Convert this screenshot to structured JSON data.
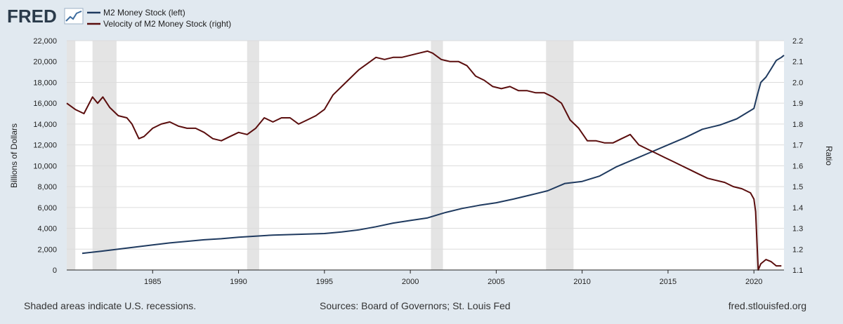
{
  "header": {
    "brand": "FRED"
  },
  "footer": {
    "left": "Shaded areas indicate U.S. recessions.",
    "center": "Sources: Board of Governors; St. Louis Fed",
    "right": "fred.stlouisfed.org"
  },
  "colors": {
    "background": "#e1e9f0",
    "plot_bg": "#ffffff",
    "series_m2": "#1f3a5f",
    "series_velocity": "#5a0d0d",
    "recession": "#e4e4e4",
    "grid": "#dcdcdc"
  },
  "chart_data": {
    "type": "line",
    "xlabel": "",
    "ylabel_left": "Billions of Dollars",
    "ylabel_right": "Ratio",
    "xlim": [
      1980.0,
      2021.75
    ],
    "ylim_left": [
      0,
      22000
    ],
    "ylim_right": [
      1.1,
      2.2
    ],
    "x_ticks": [
      1985,
      1990,
      1995,
      2000,
      2005,
      2010,
      2015,
      2020
    ],
    "y_ticks_left": [
      "0",
      "2,000",
      "4,000",
      "6,000",
      "8,000",
      "10,000",
      "12,000",
      "14,000",
      "16,000",
      "18,000",
      "20,000",
      "22,000"
    ],
    "y_ticks_right": [
      "1.1",
      "1.2",
      "1.3",
      "1.4",
      "1.5",
      "1.6",
      "1.7",
      "1.8",
      "1.9",
      "2.0",
      "2.1",
      "2.2"
    ],
    "grid": true,
    "legend_position": "top-left",
    "recessions": [
      [
        1980.0,
        1980.5
      ],
      [
        1981.5,
        1982.9
      ],
      [
        1990.5,
        1991.2
      ],
      [
        2001.2,
        2001.9
      ],
      [
        2007.9,
        2009.5
      ],
      [
        2020.1,
        2020.3
      ]
    ],
    "series": [
      {
        "name": "M2 Money Stock (left)",
        "axis": "left",
        "points": [
          [
            1980.9,
            1600
          ],
          [
            1982.0,
            1800
          ],
          [
            1983.0,
            2000
          ],
          [
            1984.0,
            2200
          ],
          [
            1985.0,
            2400
          ],
          [
            1986.0,
            2600
          ],
          [
            1987.0,
            2750
          ],
          [
            1988.0,
            2900
          ],
          [
            1989.0,
            3000
          ],
          [
            1990.0,
            3150
          ],
          [
            1991.0,
            3250
          ],
          [
            1992.0,
            3350
          ],
          [
            1993.0,
            3400
          ],
          [
            1994.0,
            3450
          ],
          [
            1995.0,
            3500
          ],
          [
            1996.0,
            3650
          ],
          [
            1997.0,
            3850
          ],
          [
            1998.0,
            4150
          ],
          [
            1999.0,
            4500
          ],
          [
            2000.0,
            4750
          ],
          [
            2001.0,
            5000
          ],
          [
            2002.0,
            5500
          ],
          [
            2003.0,
            5900
          ],
          [
            2004.0,
            6200
          ],
          [
            2005.0,
            6450
          ],
          [
            2006.0,
            6800
          ],
          [
            2007.0,
            7200
          ],
          [
            2008.0,
            7600
          ],
          [
            2009.0,
            8300
          ],
          [
            2010.0,
            8500
          ],
          [
            2011.0,
            9000
          ],
          [
            2012.0,
            9900
          ],
          [
            2013.0,
            10600
          ],
          [
            2014.0,
            11300
          ],
          [
            2015.0,
            12000
          ],
          [
            2016.0,
            12700
          ],
          [
            2017.0,
            13500
          ],
          [
            2018.0,
            13900
          ],
          [
            2019.0,
            14500
          ],
          [
            2019.8,
            15300
          ],
          [
            2020.0,
            15500
          ],
          [
            2020.2,
            16800
          ],
          [
            2020.4,
            18000
          ],
          [
            2020.7,
            18500
          ],
          [
            2021.0,
            19300
          ],
          [
            2021.3,
            20100
          ],
          [
            2021.6,
            20400
          ],
          [
            2021.75,
            20600
          ]
        ]
      },
      {
        "name": "Velocity of M2 Money Stock (right)",
        "axis": "right",
        "points": [
          [
            1980.0,
            1.9
          ],
          [
            1980.5,
            1.87
          ],
          [
            1981.0,
            1.85
          ],
          [
            1981.5,
            1.93
          ],
          [
            1981.8,
            1.9
          ],
          [
            1982.1,
            1.93
          ],
          [
            1982.5,
            1.88
          ],
          [
            1983.0,
            1.84
          ],
          [
            1983.5,
            1.83
          ],
          [
            1983.8,
            1.8
          ],
          [
            1984.2,
            1.73
          ],
          [
            1984.5,
            1.74
          ],
          [
            1985.0,
            1.78
          ],
          [
            1985.5,
            1.8
          ],
          [
            1986.0,
            1.81
          ],
          [
            1986.5,
            1.79
          ],
          [
            1987.0,
            1.78
          ],
          [
            1987.5,
            1.78
          ],
          [
            1988.0,
            1.76
          ],
          [
            1988.5,
            1.73
          ],
          [
            1989.0,
            1.72
          ],
          [
            1989.5,
            1.74
          ],
          [
            1990.0,
            1.76
          ],
          [
            1990.5,
            1.75
          ],
          [
            1991.0,
            1.78
          ],
          [
            1991.5,
            1.83
          ],
          [
            1992.0,
            1.81
          ],
          [
            1992.5,
            1.83
          ],
          [
            1993.0,
            1.83
          ],
          [
            1993.5,
            1.8
          ],
          [
            1994.0,
            1.82
          ],
          [
            1994.5,
            1.84
          ],
          [
            1995.0,
            1.87
          ],
          [
            1995.5,
            1.94
          ],
          [
            1996.0,
            1.98
          ],
          [
            1996.5,
            2.02
          ],
          [
            1997.0,
            2.06
          ],
          [
            1997.5,
            2.09
          ],
          [
            1998.0,
            2.12
          ],
          [
            1998.5,
            2.11
          ],
          [
            1999.0,
            2.12
          ],
          [
            1999.5,
            2.12
          ],
          [
            2000.0,
            2.13
          ],
          [
            2000.5,
            2.14
          ],
          [
            2001.0,
            2.15
          ],
          [
            2001.3,
            2.14
          ],
          [
            2001.8,
            2.11
          ],
          [
            2002.3,
            2.1
          ],
          [
            2002.8,
            2.1
          ],
          [
            2003.3,
            2.08
          ],
          [
            2003.8,
            2.03
          ],
          [
            2004.3,
            2.01
          ],
          [
            2004.8,
            1.98
          ],
          [
            2005.3,
            1.97
          ],
          [
            2005.8,
            1.98
          ],
          [
            2006.3,
            1.96
          ],
          [
            2006.8,
            1.96
          ],
          [
            2007.3,
            1.95
          ],
          [
            2007.8,
            1.95
          ],
          [
            2008.3,
            1.93
          ],
          [
            2008.8,
            1.9
          ],
          [
            2009.3,
            1.82
          ],
          [
            2009.8,
            1.78
          ],
          [
            2010.3,
            1.72
          ],
          [
            2010.8,
            1.72
          ],
          [
            2011.3,
            1.71
          ],
          [
            2011.8,
            1.71
          ],
          [
            2012.3,
            1.73
          ],
          [
            2012.8,
            1.75
          ],
          [
            2013.3,
            1.7
          ],
          [
            2013.8,
            1.68
          ],
          [
            2014.3,
            1.66
          ],
          [
            2014.8,
            1.64
          ],
          [
            2015.3,
            1.62
          ],
          [
            2015.8,
            1.6
          ],
          [
            2016.3,
            1.58
          ],
          [
            2016.8,
            1.56
          ],
          [
            2017.3,
            1.54
          ],
          [
            2017.8,
            1.53
          ],
          [
            2018.3,
            1.52
          ],
          [
            2018.8,
            1.5
          ],
          [
            2019.3,
            1.49
          ],
          [
            2019.8,
            1.47
          ],
          [
            2020.0,
            1.44
          ],
          [
            2020.1,
            1.38
          ],
          [
            2020.25,
            1.1
          ],
          [
            2020.4,
            1.13
          ],
          [
            2020.7,
            1.15
          ],
          [
            2021.0,
            1.14
          ],
          [
            2021.3,
            1.12
          ],
          [
            2021.6,
            1.12
          ]
        ]
      }
    ]
  }
}
